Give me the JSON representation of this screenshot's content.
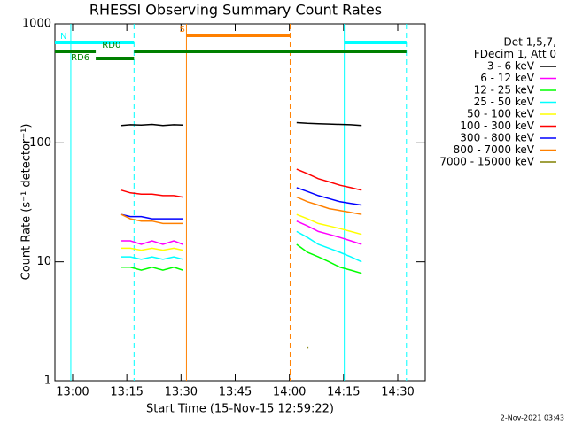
{
  "chart_data": {
    "type": "line",
    "title": "RHESSI Observing Summary Count Rates",
    "x_label": "Start Time (15-Nov-15 12:59:22)",
    "y_label": "Count Rate (s⁻¹ detector⁻¹)",
    "legend_header": [
      "Det 1,5,7,",
      "FDecim 1, Att 0"
    ],
    "footer": "2-Nov-2021 03:43",
    "log_y": true,
    "xlim": [
      -4.9,
      97.6
    ],
    "ylim": [
      1,
      1000
    ],
    "xticks": [
      {
        "value": 0,
        "label": "13:00"
      },
      {
        "value": 15,
        "label": "13:15"
      },
      {
        "value": 30,
        "label": "13:30"
      },
      {
        "value": 45,
        "label": "13:45"
      },
      {
        "value": 60,
        "label": "14:00"
      },
      {
        "value": 75,
        "label": "14:15"
      },
      {
        "value": 90,
        "label": "14:30"
      }
    ],
    "yticks": [
      1,
      10,
      100,
      1000
    ],
    "x": [
      13.5,
      16,
      19,
      22,
      25,
      28,
      30.5,
      46,
      62,
      65,
      68,
      71,
      74,
      77,
      80
    ],
    "series": [
      {
        "name": "3 - 6 keV",
        "color": "#000000",
        "values": [
          140,
          142,
          141,
          143,
          140,
          142,
          141,
          null,
          148,
          146,
          145,
          144,
          143,
          142,
          140
        ]
      },
      {
        "name": "6 - 12 keV",
        "color": "#ff00ff",
        "values": [
          15,
          15,
          14,
          15,
          14,
          15,
          14,
          null,
          22,
          20,
          18,
          17,
          16,
          15,
          14
        ]
      },
      {
        "name": "12 - 25 keV",
        "color": "#00ff00",
        "values": [
          9,
          9,
          8.5,
          9,
          8.5,
          9,
          8.5,
          null,
          14,
          12,
          11,
          10,
          9,
          8.5,
          8
        ]
      },
      {
        "name": "25 - 50 keV",
        "color": "#00ffff",
        "values": [
          11,
          11,
          10.5,
          11,
          10.5,
          11,
          10.5,
          null,
          18,
          16,
          14,
          13,
          12,
          11,
          10
        ]
      },
      {
        "name": "50 - 100 keV",
        "color": "#ffff00",
        "values": [
          13,
          13,
          12.5,
          13,
          12.5,
          13,
          12.5,
          null,
          25,
          23,
          21,
          20,
          19,
          18,
          17
        ]
      },
      {
        "name": "100 - 300 keV",
        "color": "#ff0000",
        "values": [
          40,
          38,
          37,
          37,
          36,
          36,
          35,
          null,
          60,
          55,
          50,
          47,
          44,
          42,
          40
        ]
      },
      {
        "name": "300 - 800 keV",
        "color": "#0000ff",
        "values": [
          25,
          24,
          24,
          23,
          23,
          23,
          23,
          null,
          42,
          39,
          36,
          34,
          32,
          31,
          30
        ]
      },
      {
        "name": "800 - 7000 keV",
        "color": "#ff8000",
        "values": [
          25,
          23,
          22,
          22,
          21,
          21,
          21,
          null,
          35,
          32,
          30,
          28,
          27,
          26,
          25
        ]
      },
      {
        "name": "7000 - 15000 keV",
        "color": "#808000",
        "values": [
          null,
          null,
          null,
          null,
          null,
          null,
          null,
          null,
          null,
          1.9,
          null,
          null,
          null,
          null,
          null
        ]
      }
    ],
    "flags": [
      {
        "label": "N",
        "color": "#00ffff",
        "start": -4.9,
        "end": 17,
        "row": 1
      },
      {
        "label": null,
        "color": "#00ffff",
        "start": 75.2,
        "end": 92.4,
        "row": 1
      },
      {
        "label": "S",
        "color": "#ff8000",
        "start": 31.5,
        "end": 60.2,
        "row": 0
      },
      {
        "label": "RD0",
        "color": "#008000",
        "start": 17,
        "end": 92.4,
        "row": 2
      },
      {
        "label": null,
        "color": "#008000",
        "start": -4.9,
        "end": 6.4,
        "row": 2
      },
      {
        "label": "RD6",
        "color": "#008000",
        "start": 6.4,
        "end": 17,
        "row": 3
      }
    ],
    "vlines": [
      {
        "x": -0.5,
        "color": "#00ffff",
        "dashed": false
      },
      {
        "x": 17,
        "color": "#00ffff",
        "dashed": true
      },
      {
        "x": 31.5,
        "color": "#ff8000",
        "dashed": false
      },
      {
        "x": 60.2,
        "color": "#ff8000",
        "dashed": true
      },
      {
        "x": 75.2,
        "color": "#00ffff",
        "dashed": false
      },
      {
        "x": 92.4,
        "color": "#00ffff",
        "dashed": true
      }
    ]
  }
}
